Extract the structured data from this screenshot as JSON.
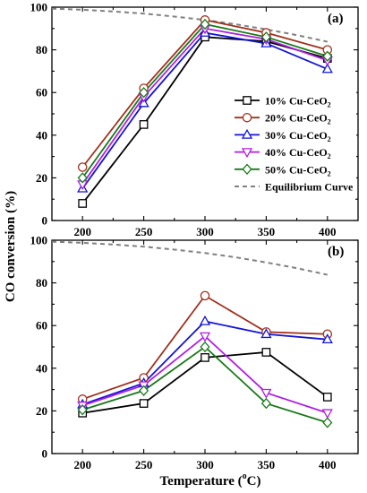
{
  "chart_data": [
    {
      "type": "line",
      "panel_label": "(a)",
      "x": [
        200,
        250,
        300,
        350,
        400
      ],
      "xlim": [
        175,
        425
      ],
      "ylim": [
        0,
        100
      ],
      "xticks": [
        200,
        250,
        300,
        350,
        400
      ],
      "yticks": [
        0,
        20,
        40,
        60,
        80,
        100
      ],
      "legend_position": "right",
      "series": [
        {
          "name": "10% Cu-CeO2",
          "name_main": "10% Cu-CeO",
          "name_sub": "2",
          "color": "#000000",
          "marker": "square",
          "values": [
            8,
            45,
            86,
            84,
            76
          ]
        },
        {
          "name": "20% Cu-CeO2",
          "name_main": "20% Cu-CeO",
          "name_sub": "2",
          "color": "#a0301c",
          "marker": "circle",
          "values": [
            25,
            62,
            94,
            88,
            80
          ]
        },
        {
          "name": "30% Cu-CeO2",
          "name_main": "30% Cu-CeO",
          "name_sub": "2",
          "color": "#1414d4",
          "marker": "triangle-up",
          "values": [
            15,
            55,
            88,
            83,
            71
          ]
        },
        {
          "name": "40% Cu-CeO2",
          "name_main": "40% Cu-CeO",
          "name_sub": "2",
          "color": "#b020e0",
          "marker": "triangle-down",
          "values": [
            17,
            58,
            90,
            85,
            75
          ]
        },
        {
          "name": "50% Cu-CeO2",
          "name_main": "50% Cu-CeO",
          "name_sub": "2",
          "color": "#1a7a1a",
          "marker": "diamond",
          "values": [
            20,
            60,
            92,
            86,
            77
          ]
        }
      ],
      "equilibrium": {
        "name": "Equilibrium Curve",
        "color": "#808080",
        "x": [
          175,
          200,
          225,
          250,
          275,
          300,
          325,
          350,
          375,
          400
        ],
        "values": [
          99.3,
          98.8,
          98.0,
          97.0,
          95.6,
          94.0,
          92.0,
          89.6,
          86.9,
          83.8
        ]
      }
    },
    {
      "type": "line",
      "panel_label": "(b)",
      "x": [
        200,
        250,
        300,
        350,
        400
      ],
      "xlim": [
        175,
        425
      ],
      "ylim": [
        0,
        100
      ],
      "xticks": [
        200,
        250,
        300,
        350,
        400
      ],
      "yticks": [
        0,
        20,
        40,
        60,
        80,
        100
      ],
      "xlabel_main": "Temperature (",
      "xlabel_sup": "o",
      "xlabel_end": "C)",
      "series": [
        {
          "name": "10% Cu-CeO2",
          "color": "#000000",
          "marker": "square",
          "values": [
            19,
            23.5,
            45,
            47.5,
            26.5
          ]
        },
        {
          "name": "20% Cu-CeO2",
          "color": "#a0301c",
          "marker": "circle",
          "values": [
            25.5,
            35.5,
            74,
            57,
            56
          ]
        },
        {
          "name": "30% Cu-CeO2",
          "color": "#1414d4",
          "marker": "triangle-up",
          "values": [
            23,
            33,
            62,
            56,
            53.5
          ]
        },
        {
          "name": "40% Cu-CeO2",
          "color": "#b020e0",
          "marker": "triangle-down",
          "values": [
            22.5,
            32,
            55,
            28.5,
            19
          ]
        },
        {
          "name": "50% Cu-CeO2",
          "color": "#1a7a1a",
          "marker": "diamond",
          "values": [
            20.5,
            29.5,
            50,
            23.5,
            14.5
          ]
        }
      ],
      "equilibrium": {
        "name": "Equilibrium Curve",
        "color": "#808080",
        "x": [
          175,
          200,
          225,
          250,
          275,
          300,
          325,
          350,
          375,
          400
        ],
        "values": [
          99.3,
          98.8,
          98.0,
          97.0,
          95.6,
          94.0,
          92.0,
          89.6,
          86.9,
          83.8
        ]
      }
    }
  ],
  "ylabel": "CO conversion (%)"
}
